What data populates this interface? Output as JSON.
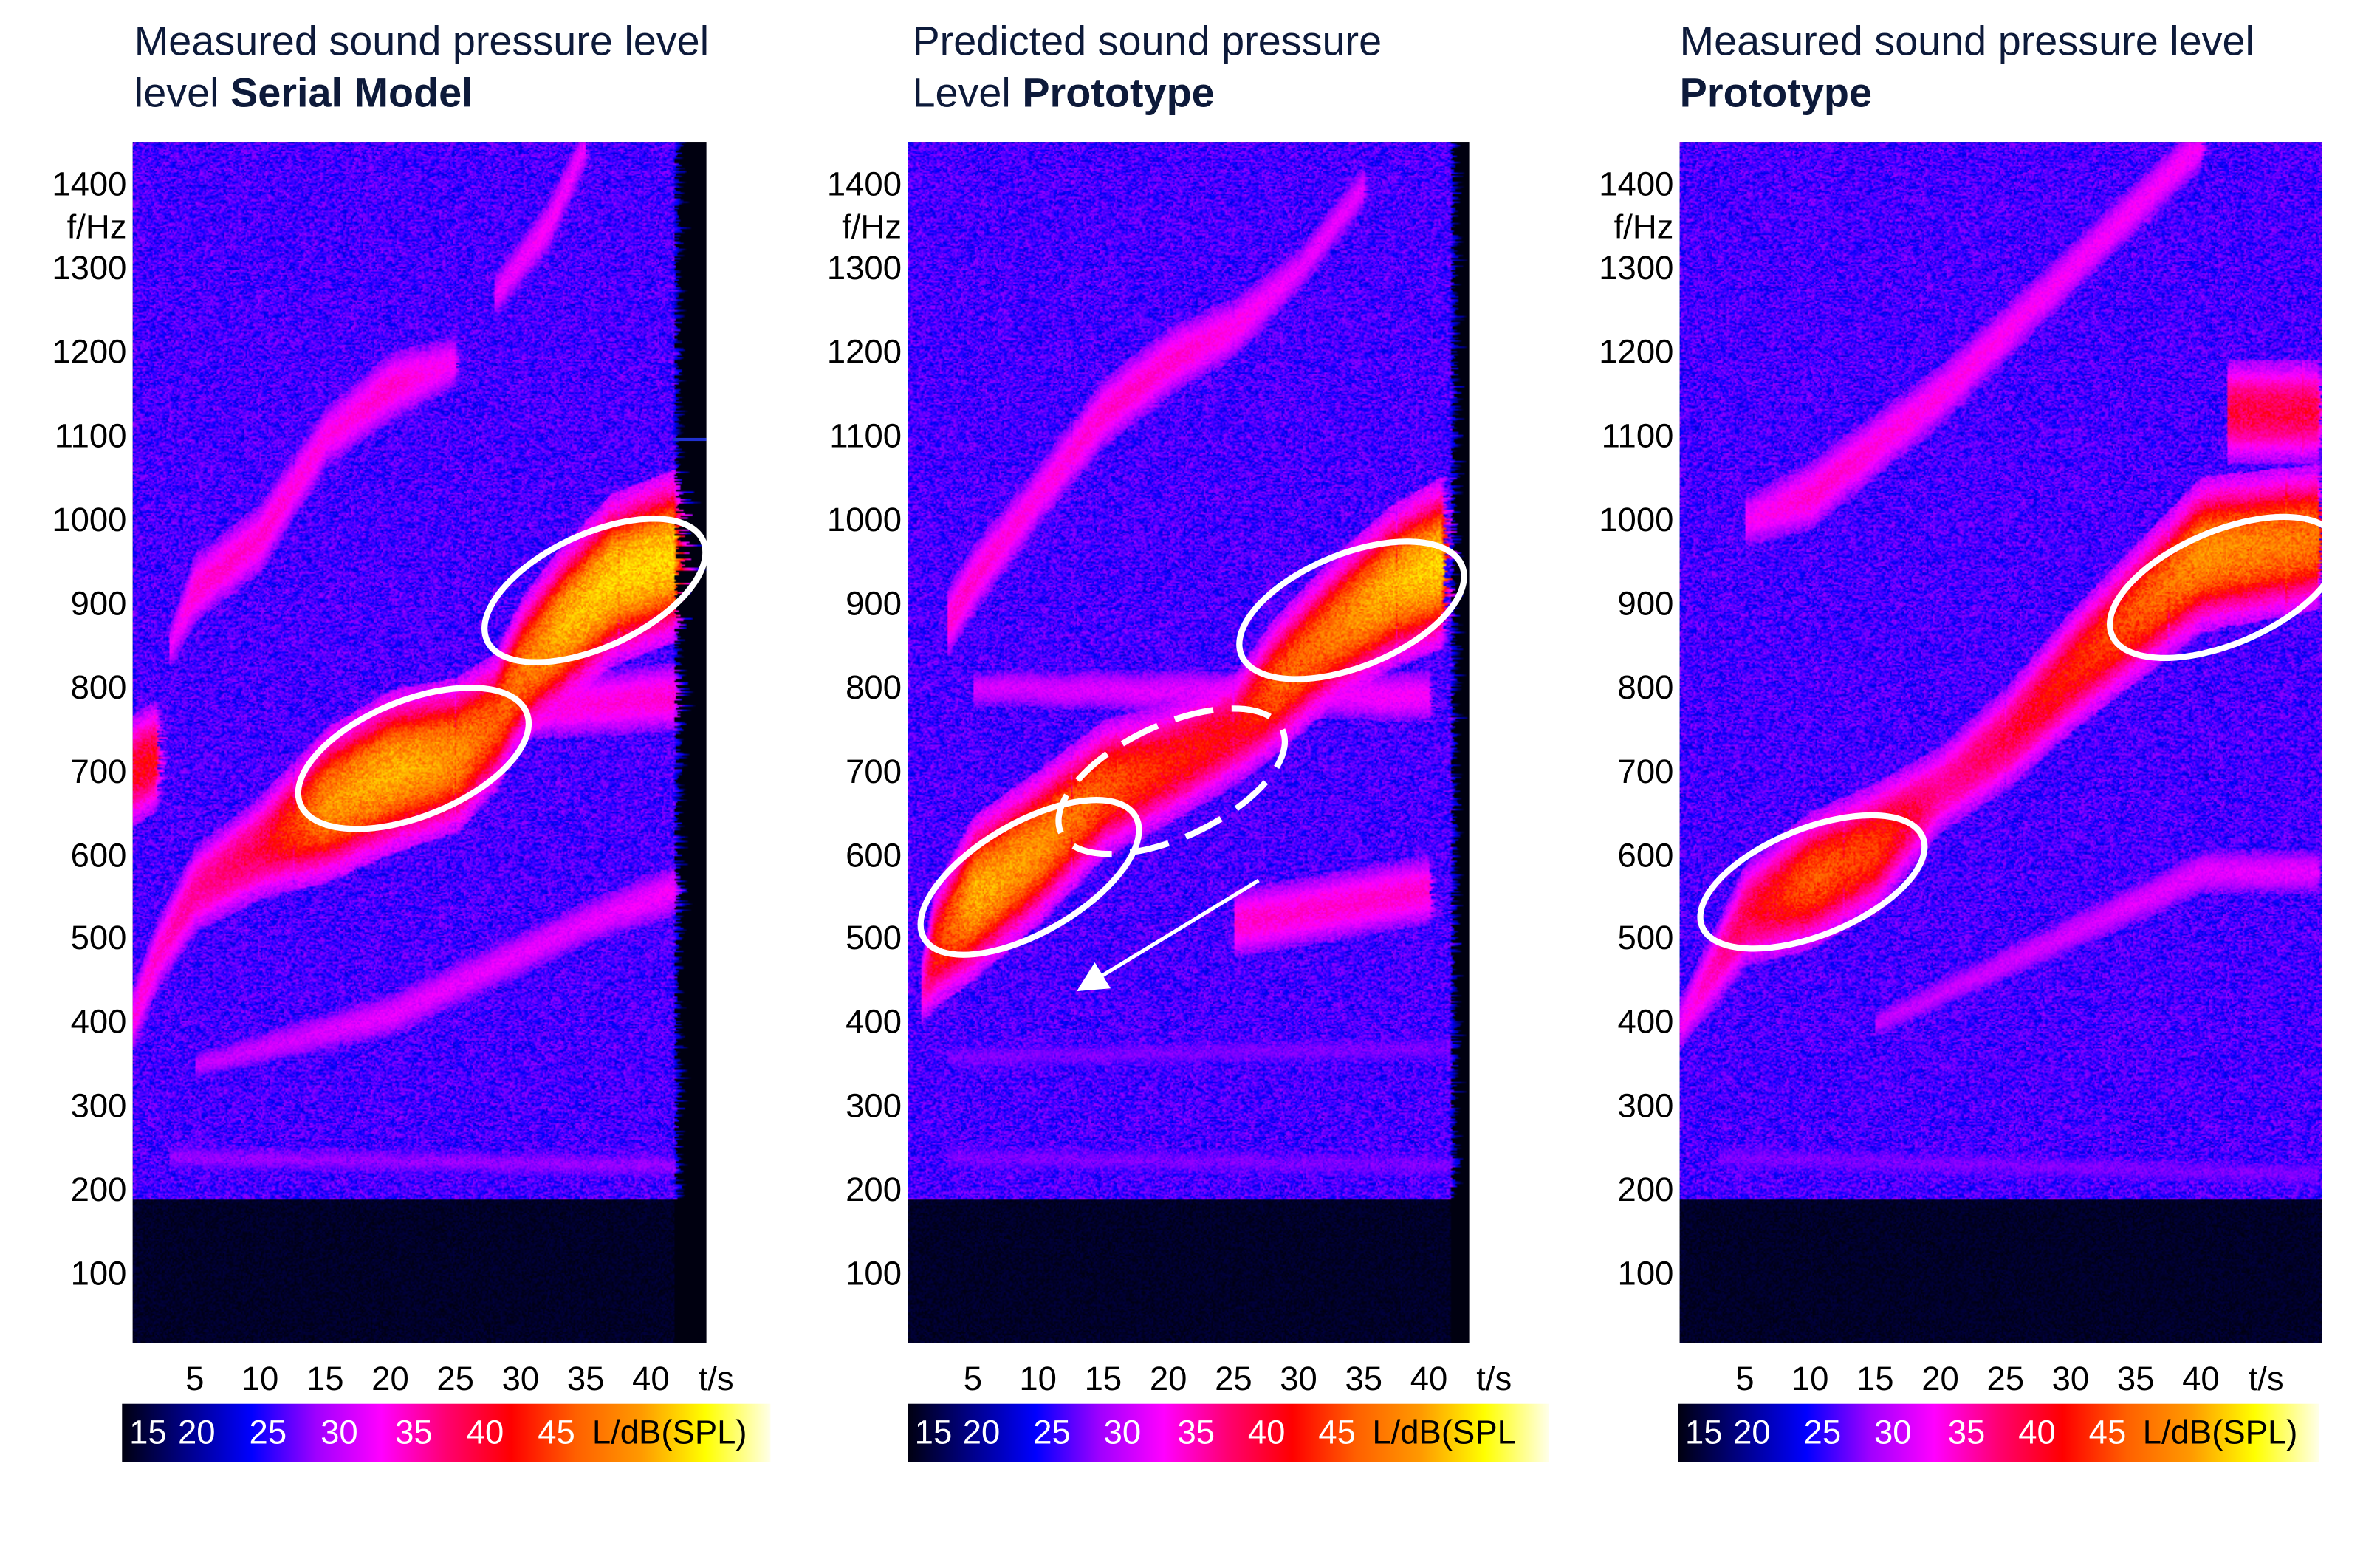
{
  "chart_data": [
    {
      "type": "heatmap",
      "title": "Measured sound pressure level",
      "title_bold": "Serial Model",
      "xlabel": "t/s",
      "ylabel": "f/Hz",
      "xticks": [
        "5",
        "10",
        "15",
        "20",
        "25",
        "30",
        "35",
        "40"
      ],
      "yticks": [
        "100",
        "200",
        "300",
        "400",
        "500",
        "600",
        "700",
        "800",
        "900",
        "1000",
        "1100",
        "1200",
        "1300",
        "1400"
      ],
      "xlim": [
        0,
        44
      ],
      "ylim": [
        0,
        1450
      ],
      "colorbar": {
        "label": "L/dB(SPL)",
        "ticks": [
          "15",
          "20",
          "25",
          "30",
          "35",
          "40",
          "45"
        ],
        "range": [
          15,
          52
        ]
      },
      "background_level_db": 26,
      "floor_below_hz": 190,
      "ridges": [
        {
          "points": [
            [
              0,
              400
            ],
            [
              2,
              480
            ],
            [
              5,
              560
            ],
            [
              10,
              610
            ],
            [
              15,
              660
            ],
            [
              20,
              700
            ],
            [
              25,
              720
            ],
            [
              28,
              760
            ],
            [
              30,
              820
            ],
            [
              33,
              870
            ],
            [
              37,
              930
            ],
            [
              42,
              960
            ]
          ],
          "levels": [
            37,
            38,
            40,
            42,
            48,
            49,
            48,
            46,
            47,
            49,
            50,
            50
          ]
        },
        {
          "points": [
            [
              3,
              850
            ],
            [
              5,
              920
            ],
            [
              10,
              980
            ],
            [
              15,
              1100
            ],
            [
              20,
              1160
            ],
            [
              25,
              1190
            ]
          ],
          "levels": [
            35,
            38,
            38,
            37,
            38,
            36
          ]
        },
        {
          "points": [
            [
              28,
              1270
            ],
            [
              32,
              1350
            ],
            [
              35,
              1450
            ]
          ],
          "levels": [
            35,
            36,
            35
          ]
        },
        {
          "points": [
            [
              0,
              700
            ],
            [
              2,
              720
            ]
          ],
          "levels": [
            43,
            43
          ]
        },
        {
          "points": [
            [
              5,
              350
            ],
            [
              20,
              410
            ],
            [
              35,
              520
            ],
            [
              42,
              560
            ]
          ],
          "levels": [
            33,
            35,
            35,
            36
          ]
        },
        {
          "points": [
            [
              20,
              760
            ],
            [
              42,
              790
            ]
          ],
          "levels": [
            36,
            38
          ]
        },
        {
          "points": [
            [
              3,
              240
            ],
            [
              42,
              230
            ]
          ],
          "levels": [
            31,
            31
          ]
        }
      ]
    },
    {
      "type": "heatmap",
      "title": "Predicted sound pressure",
      "title_line2": "Level",
      "title_bold": "Prototype",
      "xlabel": "t/s",
      "ylabel": "f/Hz",
      "xticks": [
        "5",
        "10",
        "15",
        "20",
        "25",
        "30",
        "35",
        "40"
      ],
      "yticks": [
        "100",
        "200",
        "300",
        "400",
        "500",
        "600",
        "700",
        "800",
        "900",
        "1000",
        "1100",
        "1200",
        "1300",
        "1400"
      ],
      "xlim": [
        0,
        43
      ],
      "ylim": [
        0,
        1450
      ],
      "colorbar": {
        "label": "L/dB(SPL",
        "ticks": [
          "15",
          "20",
          "25",
          "30",
          "35",
          "40",
          "45"
        ],
        "range": [
          15,
          52
        ]
      },
      "background_level_db": 26,
      "floor_below_hz": 190,
      "ridges": [
        {
          "points": [
            [
              1,
              440
            ],
            [
              2,
              490
            ],
            [
              5,
              550
            ],
            [
              10,
              610
            ],
            [
              15,
              680
            ],
            [
              20,
              710
            ],
            [
              25,
              750
            ],
            [
              28,
              800
            ],
            [
              32,
              860
            ],
            [
              37,
              920
            ],
            [
              41,
              950
            ]
          ],
          "levels": [
            38,
            44,
            49,
            48,
            46,
            44,
            43,
            46,
            47,
            49,
            50
          ]
        },
        {
          "points": [
            [
              3,
              880
            ],
            [
              5,
              930
            ],
            [
              10,
              1030
            ],
            [
              15,
              1130
            ],
            [
              20,
              1190
            ],
            [
              25,
              1230
            ],
            [
              30,
              1300
            ],
            [
              35,
              1400
            ]
          ],
          "levels": [
            38,
            38,
            37,
            38,
            38,
            37,
            35,
            35
          ]
        },
        {
          "points": [
            [
              25,
              520
            ],
            [
              40,
              560
            ]
          ],
          "levels": [
            38,
            38
          ]
        },
        {
          "points": [
            [
              5,
              800
            ],
            [
              40,
              790
            ]
          ],
          "levels": [
            34,
            36
          ]
        },
        {
          "points": [
            [
              3,
              360
            ],
            [
              42,
              370
            ]
          ],
          "levels": [
            30,
            30
          ]
        },
        {
          "points": [
            [
              3,
              240
            ],
            [
              42,
              230
            ]
          ],
          "levels": [
            30,
            30
          ]
        }
      ]
    },
    {
      "type": "heatmap",
      "title": "Measured sound pressure level",
      "title_bold": "Prototype",
      "xlabel": "t/s",
      "ylabel": "f/Hz",
      "xticks": [
        "5",
        "10",
        "15",
        "20",
        "25",
        "30",
        "35",
        "40"
      ],
      "yticks": [
        "100",
        "200",
        "300",
        "400",
        "500",
        "600",
        "700",
        "800",
        "900",
        "1000",
        "1100",
        "1200",
        "1300",
        "1400"
      ],
      "xlim": [
        0,
        49
      ],
      "ylim": [
        0,
        1450
      ],
      "colorbar": {
        "label": "L/dB(SPL)",
        "ticks": [
          "15",
          "20",
          "25",
          "30",
          "35",
          "40",
          "45"
        ],
        "range": [
          15,
          52
        ]
      },
      "background_level_db": 26,
      "floor_below_hz": 190,
      "ridges": [
        {
          "points": [
            [
              0,
              400
            ],
            [
              5,
              530
            ],
            [
              10,
              570
            ],
            [
              15,
              610
            ],
            [
              20,
              680
            ],
            [
              25,
              740
            ],
            [
              30,
              820
            ],
            [
              35,
              890
            ],
            [
              40,
              960
            ],
            [
              49,
              980
            ]
          ],
          "levels": [
            36,
            42,
            46,
            45,
            40,
            42,
            44,
            46,
            48,
            47
          ]
        },
        {
          "points": [
            [
              5,
              1000
            ],
            [
              10,
              1030
            ],
            [
              20,
              1150
            ],
            [
              30,
              1300
            ],
            [
              40,
              1450
            ]
          ],
          "levels": [
            36,
            38,
            37,
            36,
            36
          ]
        },
        {
          "points": [
            [
              42,
              1130
            ],
            [
              49,
              1130
            ]
          ],
          "levels": [
            42,
            42
          ]
        },
        {
          "points": [
            [
              15,
              400
            ],
            [
              40,
              580
            ],
            [
              49,
              580
            ]
          ],
          "levels": [
            33,
            35,
            35
          ]
        },
        {
          "points": [
            [
              3,
              240
            ],
            [
              49,
              220
            ]
          ],
          "levels": [
            30,
            30
          ]
        }
      ]
    }
  ],
  "colormap": {
    "stops": [
      [
        15,
        "#000010"
      ],
      [
        20,
        "#00008a"
      ],
      [
        25,
        "#0000ff"
      ],
      [
        30,
        "#a000ff"
      ],
      [
        35,
        "#ff00ff"
      ],
      [
        40,
        "#ff0070"
      ],
      [
        42,
        "#ff0000"
      ],
      [
        45,
        "#ff6000"
      ],
      [
        47,
        "#ff9900"
      ],
      [
        50,
        "#ffff00"
      ],
      [
        52,
        "#ffffe8"
      ]
    ]
  },
  "annotation_color": "#ffffff"
}
